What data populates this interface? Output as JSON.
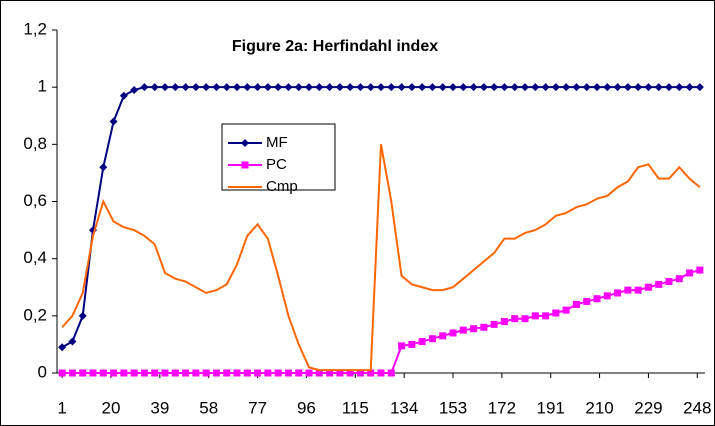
{
  "chart_data": {
    "type": "line",
    "title": "Figure 2a: Herfindahl index",
    "x": [
      1,
      5,
      9,
      13,
      17,
      21,
      25,
      29,
      33,
      37,
      41,
      45,
      49,
      53,
      57,
      61,
      65,
      69,
      73,
      77,
      81,
      85,
      89,
      93,
      97,
      101,
      105,
      109,
      113,
      117,
      121,
      125,
      129,
      133,
      137,
      141,
      145,
      149,
      153,
      157,
      161,
      165,
      169,
      173,
      177,
      181,
      185,
      189,
      193,
      197,
      201,
      205,
      209,
      213,
      217,
      221,
      225,
      229,
      233,
      237,
      241,
      245,
      249
    ],
    "series": [
      {
        "name": "MF",
        "color": "#000080",
        "marker": "diamond",
        "values": [
          0.09,
          0.11,
          0.2,
          0.5,
          0.72,
          0.88,
          0.97,
          0.99,
          1,
          1,
          1,
          1,
          1,
          1,
          1,
          1,
          1,
          1,
          1,
          1,
          1,
          1,
          1,
          1,
          1,
          1,
          1,
          1,
          1,
          1,
          1,
          1,
          1,
          1,
          1,
          1,
          1,
          1,
          1,
          1,
          1,
          1,
          1,
          1,
          1,
          1,
          1,
          1,
          1,
          1,
          1,
          1,
          1,
          1,
          1,
          1,
          1,
          1,
          1,
          1,
          1,
          1,
          1
        ]
      },
      {
        "name": "PC",
        "color": "#ff00ff",
        "marker": "square",
        "values": [
          0,
          0,
          0,
          0,
          0,
          0,
          0,
          0,
          0,
          0,
          0,
          0,
          0,
          0,
          0,
          0,
          0,
          0,
          0,
          0,
          0,
          0,
          0,
          0,
          0,
          0,
          0,
          0,
          0,
          0,
          0,
          0,
          0,
          0.095,
          0.1,
          0.11,
          0.12,
          0.13,
          0.14,
          0.15,
          0.155,
          0.16,
          0.17,
          0.18,
          0.19,
          0.19,
          0.2,
          0.2,
          0.21,
          0.22,
          0.24,
          0.25,
          0.26,
          0.27,
          0.28,
          0.29,
          0.29,
          0.3,
          0.31,
          0.32,
          0.33,
          0.35,
          0.36
        ]
      },
      {
        "name": "Cmp",
        "color": "#ff6600",
        "values": [
          0.16,
          0.2,
          0.28,
          0.48,
          0.6,
          0.53,
          0.51,
          0.5,
          0.48,
          0.45,
          0.35,
          0.33,
          0.32,
          0.3,
          0.28,
          0.29,
          0.31,
          0.38,
          0.48,
          0.52,
          0.47,
          0.34,
          0.2,
          0.1,
          0.02,
          0.01,
          0.01,
          0.01,
          0.01,
          0.01,
          0.01,
          0.8,
          0.6,
          0.34,
          0.31,
          0.3,
          0.29,
          0.29,
          0.3,
          0.33,
          0.36,
          0.39,
          0.42,
          0.47,
          0.47,
          0.49,
          0.5,
          0.52,
          0.55,
          0.56,
          0.58,
          0.59,
          0.61,
          0.62,
          0.65,
          0.67,
          0.72,
          0.73,
          0.68,
          0.68,
          0.72,
          0.68,
          0.65
        ]
      }
    ],
    "xlim": [
      -1,
      251
    ],
    "xticks": [
      1,
      20,
      39,
      58,
      77,
      96,
      115,
      134,
      153,
      172,
      191,
      210,
      229,
      248
    ],
    "ylim": [
      0,
      1.2
    ],
    "yticks": [
      0,
      {
        "value": 0.2,
        "label": "0,2"
      },
      {
        "value": 0.4,
        "label": "0,4"
      },
      {
        "value": 0.6,
        "label": "0,6"
      },
      {
        "value": 0.8,
        "label": "0,8"
      },
      1,
      {
        "value": 1.2,
        "label": "1,2"
      }
    ]
  }
}
